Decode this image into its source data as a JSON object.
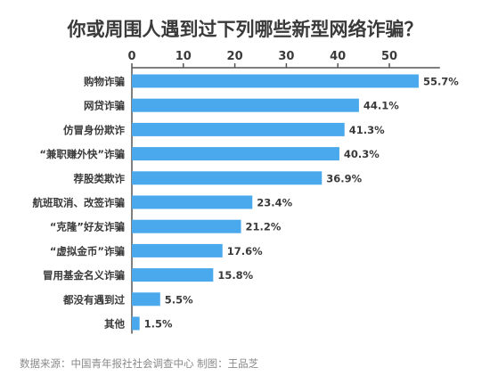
{
  "chart_data": {
    "type": "bar",
    "orientation": "horizontal",
    "title": "你或周围人遇到过下列哪些新型网络诈骗？",
    "categories": [
      "购物诈骗",
      "网贷诈骗",
      "仿冒身份欺诈",
      "“兼职赚外快”诈骗",
      "荐股类欺诈",
      "航班取消、改签诈骗",
      "“克隆”好友诈骗",
      "“虚拟金币”诈骗",
      "冒用基金名义诈骗",
      "都没有遇到过",
      "其他"
    ],
    "values": [
      55.7,
      44.1,
      41.3,
      40.3,
      36.9,
      23.4,
      21.2,
      17.6,
      15.8,
      5.5,
      1.5
    ],
    "value_labels": [
      "55.7%",
      "44.1%",
      "41.3%",
      "40.3%",
      "36.9%",
      "23.4%",
      "21.2%",
      "17.6%",
      "15.8%",
      "5.5%",
      "1.5%"
    ],
    "x_ticks": [
      "0",
      "10",
      "20",
      "30",
      "40",
      "50"
    ],
    "xlim": [
      0,
      60
    ],
    "grid": false,
    "legend": "none",
    "bar_color": "#4aa8ec",
    "axis_color": "#555555",
    "source": "数据来源：中国青年报社社会调查中心 制图：王品芝"
  }
}
